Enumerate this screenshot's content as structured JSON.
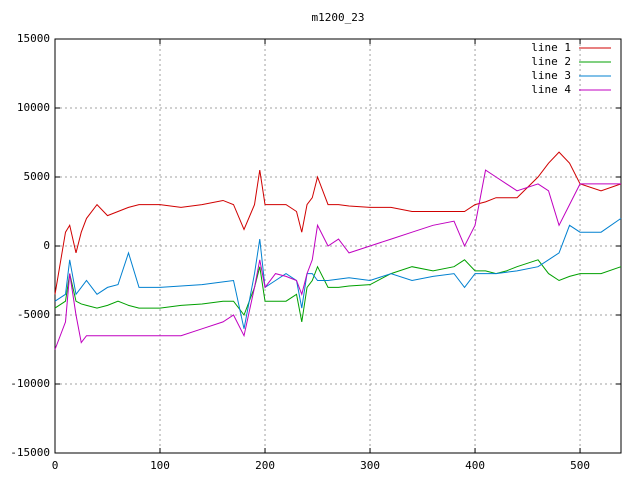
{
  "chart_data": {
    "type": "line",
    "title": "m1200_23",
    "x": [
      0,
      10,
      14,
      20,
      25,
      30,
      40,
      50,
      60,
      70,
      80,
      100,
      120,
      140,
      160,
      170,
      180,
      190,
      195,
      200,
      210,
      220,
      230,
      235,
      240,
      245,
      250,
      260,
      270,
      280,
      300,
      320,
      340,
      360,
      380,
      390,
      400,
      410,
      420,
      430,
      440,
      460,
      470,
      480,
      490,
      500,
      520,
      539
    ],
    "series": [
      {
        "name": "line 1",
        "color": "#d00000",
        "values": [
          -3500,
          1000,
          1500,
          -500,
          1000,
          2000,
          3000,
          2200,
          2500,
          2800,
          3000,
          3000,
          2800,
          3000,
          3300,
          3000,
          1200,
          3000,
          5500,
          3000,
          3000,
          3000,
          2500,
          1000,
          3000,
          3500,
          5000,
          3000,
          3000,
          2900,
          2800,
          2800,
          2500,
          2500,
          2500,
          2500,
          3000,
          3200,
          3500,
          3500,
          3500,
          5000,
          6000,
          6800,
          6000,
          4500,
          4000,
          4500
        ]
      },
      {
        "name": "line 2",
        "color": "#00a000",
        "values": [
          -4500,
          -4000,
          -2000,
          -4000,
          -4200,
          -4300,
          -4500,
          -4300,
          -4000,
          -4300,
          -4500,
          -4500,
          -4300,
          -4200,
          -4000,
          -4000,
          -5000,
          -3000,
          -1500,
          -4000,
          -4000,
          -4000,
          -3500,
          -5500,
          -3000,
          -2500,
          -1500,
          -3000,
          -3000,
          -2900,
          -2800,
          -2000,
          -1500,
          -1800,
          -1500,
          -1000,
          -1800,
          -1800,
          -2000,
          -1800,
          -1500,
          -1000,
          -2000,
          -2500,
          -2200,
          -2000,
          -2000,
          -1500
        ]
      },
      {
        "name": "line 3",
        "color": "#0080d0",
        "values": [
          -4000,
          -3500,
          -1000,
          -3500,
          -3000,
          -2500,
          -3500,
          -3000,
          -2800,
          -500,
          -3000,
          -3000,
          -2900,
          -2800,
          -2600,
          -2500,
          -6000,
          -2000,
          500,
          -3000,
          -2500,
          -2000,
          -2500,
          -4500,
          -2000,
          -2000,
          -2500,
          -2500,
          -2400,
          -2300,
          -2500,
          -2000,
          -2500,
          -2200,
          -2000,
          -3000,
          -2000,
          -2000,
          -2000,
          -1900,
          -1800,
          -1500,
          -1000,
          -500,
          1500,
          1000,
          1000,
          2000
        ]
      },
      {
        "name": "line 4",
        "color": "#c000c0",
        "values": [
          -7500,
          -5500,
          -2000,
          -5000,
          -7000,
          -6500,
          -6500,
          -6500,
          -6500,
          -6500,
          -6500,
          -6500,
          -6500,
          -6000,
          -5500,
          -5000,
          -6500,
          -3000,
          -1000,
          -3000,
          -2000,
          -2200,
          -2500,
          -3500,
          -2000,
          -1000,
          1500,
          0,
          500,
          -500,
          0,
          500,
          1000,
          1500,
          1800,
          0,
          1500,
          5500,
          5000,
          4500,
          4000,
          4500,
          4000,
          1500,
          3000,
          4500,
          4500,
          4500
        ]
      }
    ],
    "xlim": [
      0,
      539
    ],
    "ylim": [
      -15000,
      15000
    ],
    "xticks": [
      0,
      100,
      200,
      300,
      400,
      500
    ],
    "yticks": [
      -15000,
      -10000,
      -5000,
      0,
      5000,
      10000,
      15000
    ],
    "grid": true,
    "legend": "top-right"
  }
}
